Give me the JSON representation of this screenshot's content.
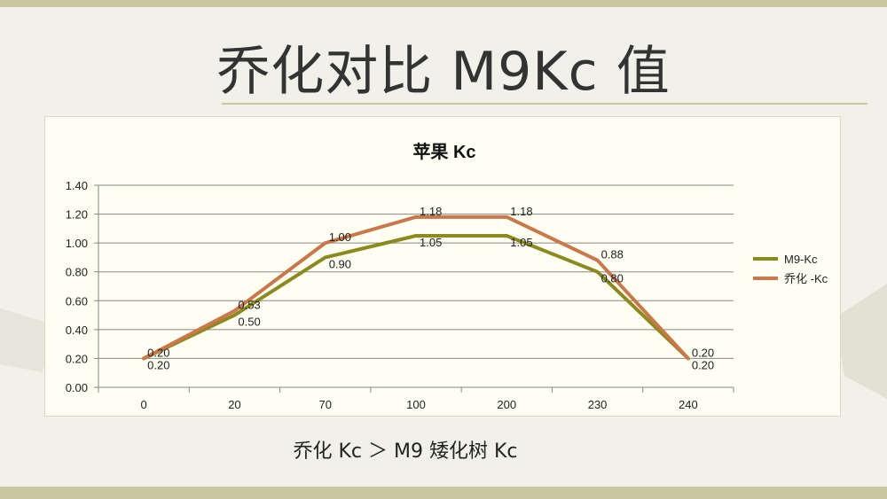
{
  "slide": {
    "title": "乔化对比 M9Kc 值",
    "caption": "乔化 Kc ＞ M9 矮化树 Kc"
  },
  "chart_data": {
    "type": "line",
    "title": "苹果 Kc",
    "categories": [
      "0",
      "20",
      "70",
      "100",
      "200",
      "230",
      "240"
    ],
    "ylim": [
      0,
      1.4
    ],
    "yticks": [
      "0.00",
      "0.20",
      "0.40",
      "0.60",
      "0.80",
      "1.00",
      "1.20",
      "1.40"
    ],
    "grid": true,
    "legend_position": "right",
    "series": [
      {
        "name": "M9-Kc",
        "color": "#8c8a1e",
        "values": [
          0.2,
          0.5,
          0.9,
          1.05,
          1.05,
          0.8,
          0.2
        ],
        "labels": [
          "0.20",
          "0.50",
          "0.90",
          "1.05",
          "1.05",
          "0.80",
          "0.20"
        ]
      },
      {
        "name": "乔化 -Kc",
        "color": "#c8784a",
        "values": [
          0.2,
          0.53,
          1.0,
          1.18,
          1.18,
          0.88,
          0.2
        ],
        "labels": [
          "0.20",
          "0.53",
          "1.00",
          "1.18",
          "1.18",
          "0.88",
          "0.20"
        ]
      }
    ]
  }
}
